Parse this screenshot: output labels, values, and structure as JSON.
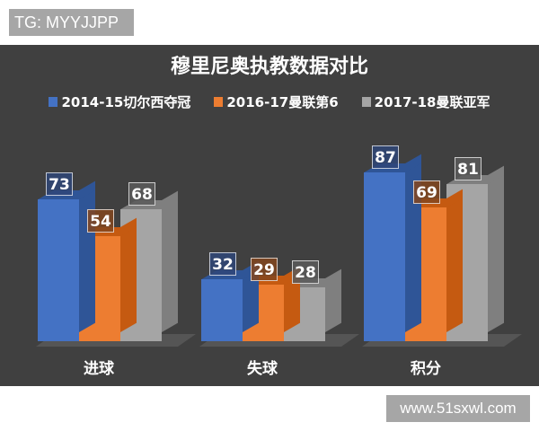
{
  "watermark_top": "TG: MYYJJPP",
  "watermark_bottom": "www.51sxwl.com",
  "chart_data": {
    "type": "bar",
    "title": "穆里尼奥执教数据对比",
    "categories": [
      "进球",
      "失球",
      "积分"
    ],
    "series": [
      {
        "name": "2014-15切尔西夺冠",
        "color": "#4472c4",
        "values": [
          73,
          32,
          87
        ]
      },
      {
        "name": "2016-17曼联第6",
        "color": "#ed7d31",
        "values": [
          54,
          29,
          69
        ]
      },
      {
        "name": "2017-18曼联亚军",
        "color": "#a5a5a5",
        "values": [
          68,
          28,
          81
        ]
      }
    ],
    "xlabel": "",
    "ylabel": "",
    "grid": false,
    "legend_position": "top",
    "style": "3d-column"
  }
}
